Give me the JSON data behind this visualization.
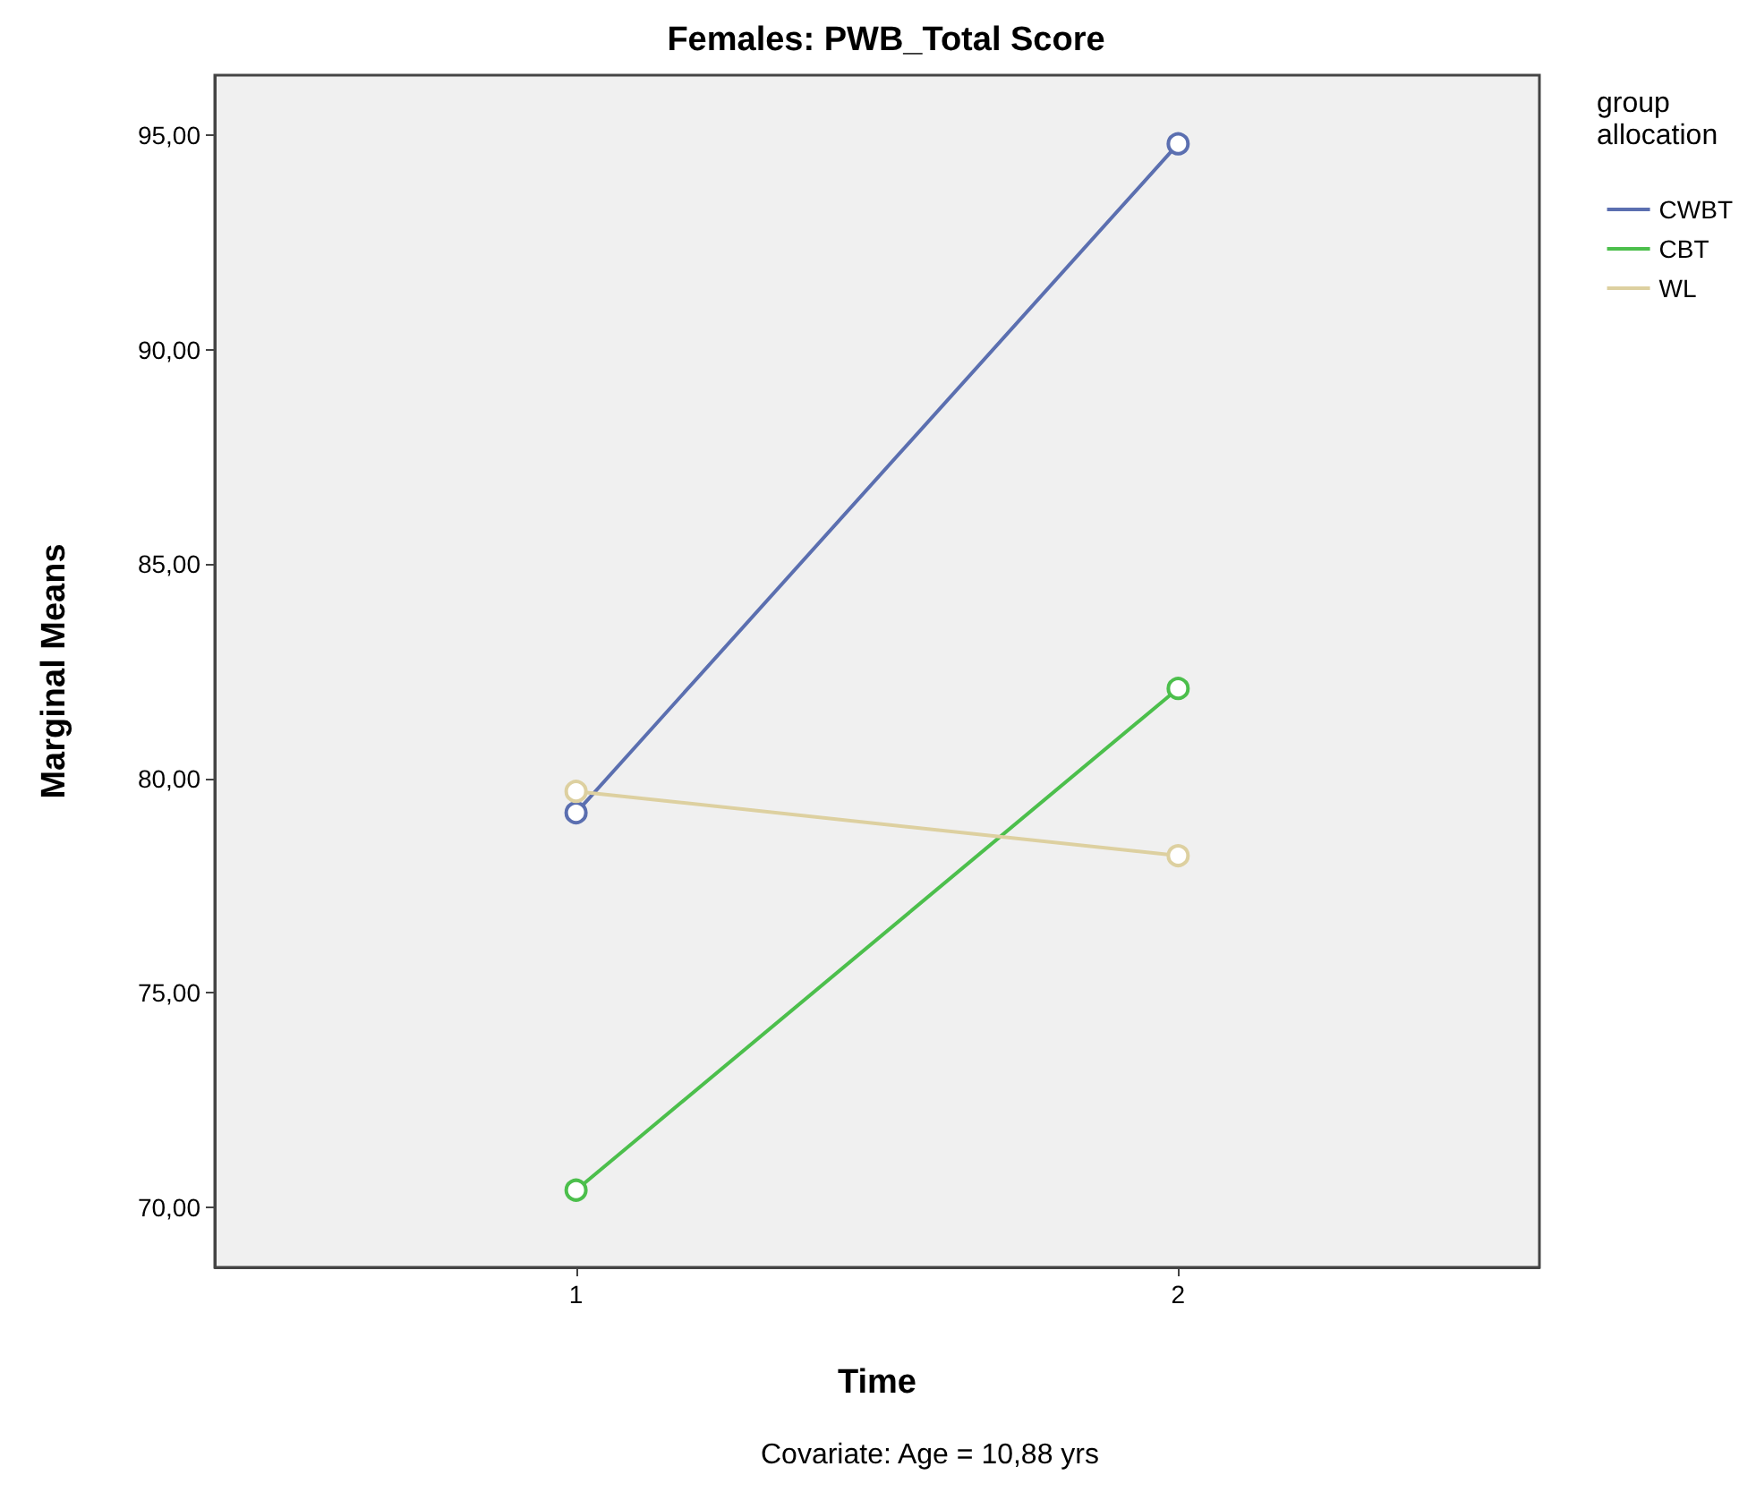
{
  "chart_data": {
    "type": "line",
    "title": "Females: PWB_Total Score",
    "xlabel": "Time",
    "ylabel": "Marginal Means",
    "legend_title": "group allocation",
    "x": [
      1,
      2
    ],
    "series": [
      {
        "name": "CWBT",
        "color": "#5b6fb0",
        "values": [
          79.2,
          94.8
        ]
      },
      {
        "name": "CBT",
        "color": "#4cbf4c",
        "values": [
          70.4,
          82.1
        ]
      },
      {
        "name": "WL",
        "color": "#ddd0a0",
        "values": [
          79.7,
          78.2
        ]
      }
    ],
    "xlim": [
      0.4,
      2.6
    ],
    "xticks": [
      1,
      2
    ],
    "ylim": [
      68.6,
      96.4
    ],
    "yticks": [
      {
        "value": 70,
        "label": "70,00"
      },
      {
        "value": 75,
        "label": "75,00"
      },
      {
        "value": 80,
        "label": "80,00"
      },
      {
        "value": 85,
        "label": "85,00"
      },
      {
        "value": 90,
        "label": "90,00"
      },
      {
        "value": 95,
        "label": "95,00"
      }
    ],
    "grid": false,
    "legend": "right",
    "marker": "circle",
    "line_style": "solid",
    "annotations": [
      "Covariate: Age = 10,88 yrs"
    ]
  }
}
